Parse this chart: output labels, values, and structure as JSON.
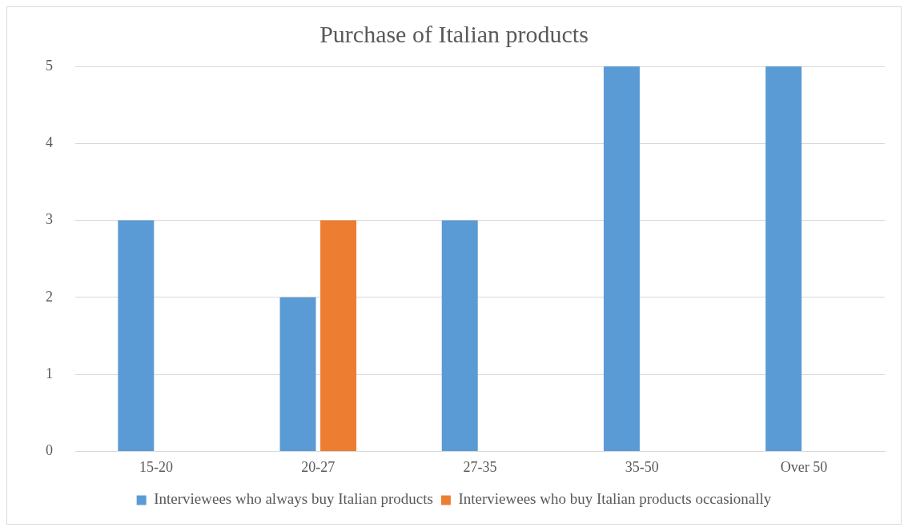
{
  "chart_data": {
    "type": "bar",
    "title": "Purchase of Italian products",
    "categories": [
      "15-20",
      "20-27",
      "27-35",
      "35-50",
      "Over 50"
    ],
    "series": [
      {
        "name": "Interviewees who always buy Italian products",
        "color": "#5b9bd5",
        "values": [
          3,
          2,
          3,
          5,
          5
        ]
      },
      {
        "name": "Interviewees who buy Italian products occasionally",
        "color": "#ed7d31",
        "values": [
          0,
          3,
          0,
          0,
          0
        ]
      }
    ],
    "ylim": [
      0,
      5
    ],
    "yticks": [
      0,
      1,
      2,
      3,
      4,
      5
    ],
    "grid": "y",
    "legend": "bottom"
  }
}
